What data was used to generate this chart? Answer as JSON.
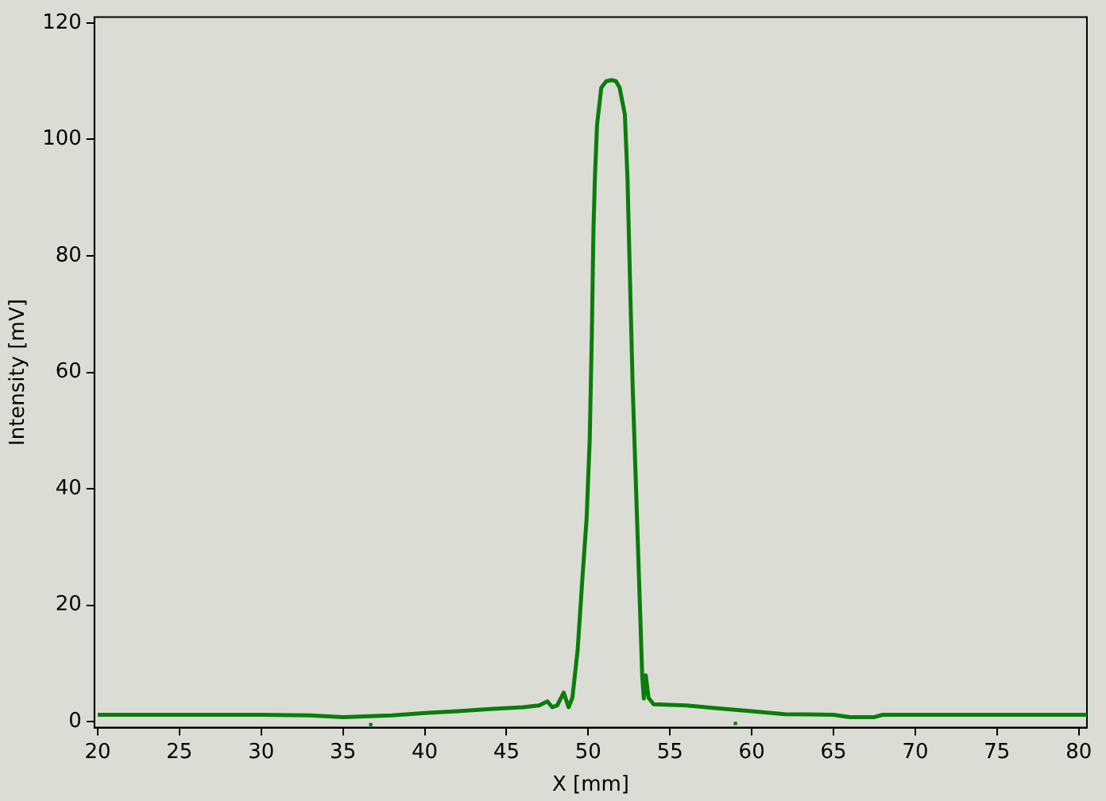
{
  "chart_data": {
    "type": "line",
    "xlabel": "X [mm]",
    "ylabel": "Intensity [mV]",
    "xlim": [
      19.8,
      80.5
    ],
    "ylim": [
      -1,
      121
    ],
    "xticks": [
      20,
      25,
      30,
      35,
      40,
      45,
      50,
      55,
      60,
      65,
      70,
      75,
      80
    ],
    "yticks": [
      0,
      20,
      40,
      60,
      80,
      100,
      120
    ],
    "grid": false,
    "legend": false,
    "marker": "none",
    "series": [
      {
        "color": "#0a7d0a",
        "x": [
          20,
          25,
          30,
          33,
          35,
          37,
          38,
          40,
          42,
          44,
          46,
          47,
          47.5,
          47.8,
          48.1,
          48.5,
          48.8,
          49.03,
          49.35,
          49.67,
          49.9,
          50.09,
          50.22,
          50.32,
          50.41,
          50.54,
          50.8,
          51.1,
          51.44,
          51.7,
          51.92,
          52.24,
          52.4,
          52.56,
          52.72,
          52.88,
          53.04,
          53.2,
          53.3,
          53.4,
          53.52,
          53.69,
          54,
          56,
          58,
          60,
          62,
          65,
          66,
          67.5,
          68,
          70,
          75,
          80.5
        ],
        "values": [
          1.2,
          1.2,
          1.2,
          1.1,
          0.8,
          1,
          1.1,
          1.5,
          1.8,
          2.2,
          2.5,
          2.8,
          3.5,
          2.5,
          2.8,
          5,
          2.5,
          4.1,
          12.2,
          25.7,
          34.8,
          48.3,
          66.4,
          84.5,
          93.5,
          102.5,
          108.9,
          110,
          110.2,
          110,
          108.9,
          104.3,
          93.5,
          75.4,
          57.4,
          43.8,
          30.3,
          16.7,
          8,
          4,
          8,
          4.1,
          3,
          2.8,
          2.3,
          1.8,
          1.3,
          1.2,
          0.8,
          0.8,
          1.2,
          1.2,
          1.2,
          1.2
        ]
      },
      {
        "type": "scatter",
        "marker": "square",
        "color": "#0a7d0a",
        "x": [
          36.7,
          59
        ],
        "values": [
          -0.5,
          -0.3
        ]
      }
    ]
  }
}
